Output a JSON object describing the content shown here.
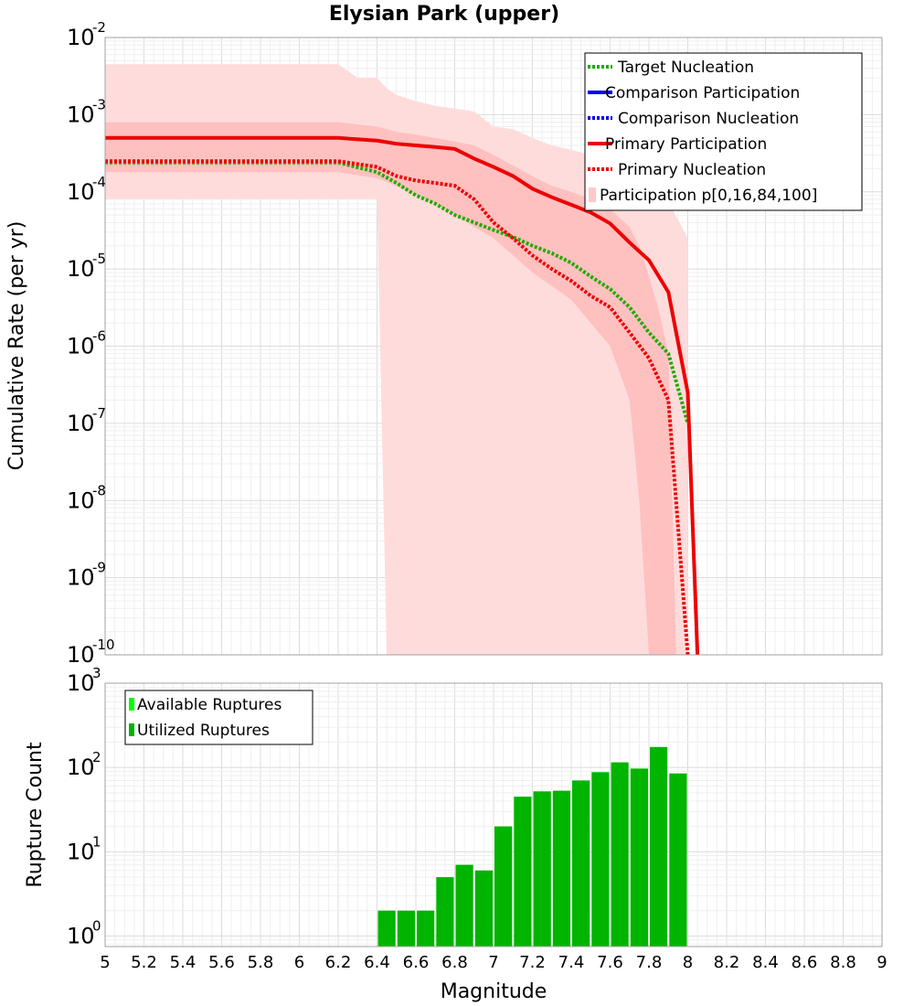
{
  "chart_data": [
    {
      "type": "line",
      "title": "Elysian Park (upper)",
      "xlabel": "Magnitude",
      "ylabel": "Cumulative Rate (per yr)",
      "xlim": [
        5,
        9
      ],
      "ylim": [
        1e-10,
        0.01
      ],
      "yscale": "log",
      "y_ticks": [
        {
          "base": "10",
          "exp": "-10",
          "value": 1e-10
        },
        {
          "base": "10",
          "exp": "-9",
          "value": 1e-09
        },
        {
          "base": "10",
          "exp": "-8",
          "value": 1e-08
        },
        {
          "base": "10",
          "exp": "-7",
          "value": 1e-07
        },
        {
          "base": "10",
          "exp": "-6",
          "value": 1e-06
        },
        {
          "base": "10",
          "exp": "-5",
          "value": 1e-05
        },
        {
          "base": "10",
          "exp": "-4",
          "value": 0.0001
        },
        {
          "base": "10",
          "exp": "-3",
          "value": 0.001
        },
        {
          "base": "10",
          "exp": "-2",
          "value": 0.01
        }
      ],
      "grid": true,
      "legend_position": "top-right",
      "legend": [
        {
          "label": "Target Nucleation",
          "color": "#22aa00",
          "style": "dotted"
        },
        {
          "label": "Comparison Participation",
          "color": "#0000ee",
          "style": "solid"
        },
        {
          "label": "Comparison Nucleation",
          "color": "#0000ee",
          "style": "dotted"
        },
        {
          "label": "Primary Participation",
          "color": "#ee0000",
          "style": "solid"
        },
        {
          "label": "Primary Nucleation",
          "color": "#ee0000",
          "style": "dotted"
        },
        {
          "label": "Participation p[0,16,84,100]",
          "color": "#ffc8c8",
          "style": "box"
        }
      ],
      "bands": [
        {
          "name": "p0-p100",
          "color": "#ffdcdc",
          "x": [
            5.0,
            6.2,
            6.3,
            6.4,
            6.45,
            6.5,
            6.6,
            6.7,
            6.8,
            6.9,
            7.0,
            7.1,
            7.2,
            7.3,
            7.4,
            7.5,
            7.6,
            7.7,
            7.8,
            7.9,
            8.0,
            8.0
          ],
          "upper": [
            0.0045,
            0.0045,
            0.003,
            0.003,
            0.0022,
            0.0018,
            0.0015,
            0.0013,
            0.0012,
            0.0011,
            0.0007,
            0.00065,
            0.0005,
            0.0004,
            0.00035,
            0.0003,
            0.00025,
            0.00018,
            0.00012,
            7.5e-05,
            2.5e-05,
            1e-10
          ],
          "lower": [
            8e-05,
            8e-05,
            8e-05,
            8e-05,
            1e-10,
            1e-10,
            1e-10,
            1e-10,
            1e-10,
            1e-10,
            1e-10,
            1e-10,
            1e-10,
            1e-10,
            1e-10,
            1e-10,
            1e-10,
            1e-10,
            1e-10,
            1e-10,
            1e-10,
            1e-10
          ]
        },
        {
          "name": "p16-p84",
          "color": "#ffc0c0",
          "x": [
            5.0,
            6.2,
            6.4,
            6.5,
            6.6,
            6.7,
            6.8,
            6.9,
            7.0,
            7.1,
            7.2,
            7.3,
            7.4,
            7.5,
            7.6,
            7.7,
            7.75,
            7.8,
            7.85,
            7.9,
            7.94
          ],
          "upper": [
            0.0008,
            0.0008,
            0.0007,
            0.0006,
            0.00055,
            0.0005,
            0.00045,
            0.0004,
            0.0003,
            0.00022,
            0.00016,
            0.00012,
            0.0001,
            8e-05,
            6e-05,
            3.5e-05,
            2e-05,
            8e-06,
            3e-06,
            8e-07,
            1e-10
          ],
          "lower": [
            0.00018,
            0.00018,
            0.00015,
            0.00012,
            9e-05,
            7e-05,
            5e-05,
            3.5e-05,
            2.5e-05,
            1.5e-05,
            9e-06,
            6e-06,
            4e-06,
            2e-06,
            1e-06,
            2e-07,
            1e-08,
            1e-10,
            1e-10,
            1e-10,
            1e-10
          ]
        }
      ],
      "series": [
        {
          "name": "Target Nucleation",
          "color": "#22aa00",
          "style": "dotted",
          "x": [
            5.0,
            6.2,
            6.4,
            6.5,
            6.6,
            6.7,
            6.8,
            6.9,
            7.0,
            7.1,
            7.2,
            7.3,
            7.4,
            7.5,
            7.6,
            7.7,
            7.8,
            7.9,
            8.0
          ],
          "y": [
            0.00024,
            0.00024,
            0.00018,
            0.00013,
            9e-05,
            7e-05,
            5e-05,
            4e-05,
            3.2e-05,
            2.6e-05,
            2e-05,
            1.6e-05,
            1.2e-05,
            8e-06,
            5.5e-06,
            3.2e-06,
            1.5e-06,
            8e-07,
            1e-07
          ]
        },
        {
          "name": "Primary Participation",
          "color": "#ee0000",
          "style": "solid",
          "x": [
            5.0,
            6.2,
            6.4,
            6.5,
            6.6,
            6.7,
            6.8,
            6.9,
            7.0,
            7.1,
            7.2,
            7.3,
            7.4,
            7.5,
            7.6,
            7.7,
            7.8,
            7.9,
            8.0,
            8.05
          ],
          "y": [
            0.0005,
            0.0005,
            0.00046,
            0.00042,
            0.0004,
            0.00038,
            0.00036,
            0.00027,
            0.00021,
            0.00016,
            0.00011,
            8.5e-05,
            6.8e-05,
            5.4e-05,
            3.9e-05,
            2.2e-05,
            1.3e-05,
            5e-06,
            2.5e-07,
            1e-10
          ]
        },
        {
          "name": "Primary Nucleation",
          "color": "#ee0000",
          "style": "dotted",
          "x": [
            5.0,
            6.2,
            6.4,
            6.5,
            6.6,
            6.7,
            6.8,
            6.9,
            7.0,
            7.1,
            7.2,
            7.3,
            7.4,
            7.5,
            7.6,
            7.7,
            7.8,
            7.9,
            8.0
          ],
          "y": [
            0.00025,
            0.00025,
            0.00021,
            0.00016,
            0.00014,
            0.00013,
            0.00012,
            8e-05,
            4e-05,
            2.5e-05,
            1.5e-05,
            1e-05,
            7e-06,
            4.5e-06,
            3.2e-06,
            1.5e-06,
            7e-07,
            2e-07,
            1e-10
          ]
        }
      ]
    },
    {
      "type": "bar",
      "xlabel": "Magnitude",
      "ylabel": "Rupture Count",
      "xlim": [
        5,
        9
      ],
      "ylim": [
        0.75,
        1000
      ],
      "yscale": "log",
      "x_ticks": [
        "5",
        "5.2",
        "5.4",
        "5.6",
        "5.8",
        "6",
        "6.2",
        "6.4",
        "6.6",
        "6.8",
        "7",
        "7.2",
        "7.4",
        "7.6",
        "7.8",
        "8",
        "8.2",
        "8.4",
        "8.6",
        "8.8",
        "9"
      ],
      "y_ticks": [
        {
          "base": "10",
          "exp": "0",
          "value": 1
        },
        {
          "base": "10",
          "exp": "1",
          "value": 10
        },
        {
          "base": "10",
          "exp": "2",
          "value": 100
        },
        {
          "base": "10",
          "exp": "3",
          "value": 1000
        }
      ],
      "grid": true,
      "legend_position": "top-left",
      "legend": [
        {
          "label": "Available Ruptures",
          "color": "#00ff00"
        },
        {
          "label": "Utilized Ruptures",
          "color": "#00b400"
        }
      ],
      "bar_color": "#00b400",
      "bin_width": 0.1,
      "bins": [
        6.45,
        6.55,
        6.65,
        6.75,
        6.85,
        6.95,
        7.05,
        7.15,
        7.25,
        7.35,
        7.45,
        7.55,
        7.65,
        7.75,
        7.85,
        7.95
      ],
      "values": [
        2,
        2,
        2,
        5,
        7,
        6,
        20,
        45,
        52,
        53,
        70,
        88,
        115,
        97,
        175,
        85
      ]
    }
  ]
}
